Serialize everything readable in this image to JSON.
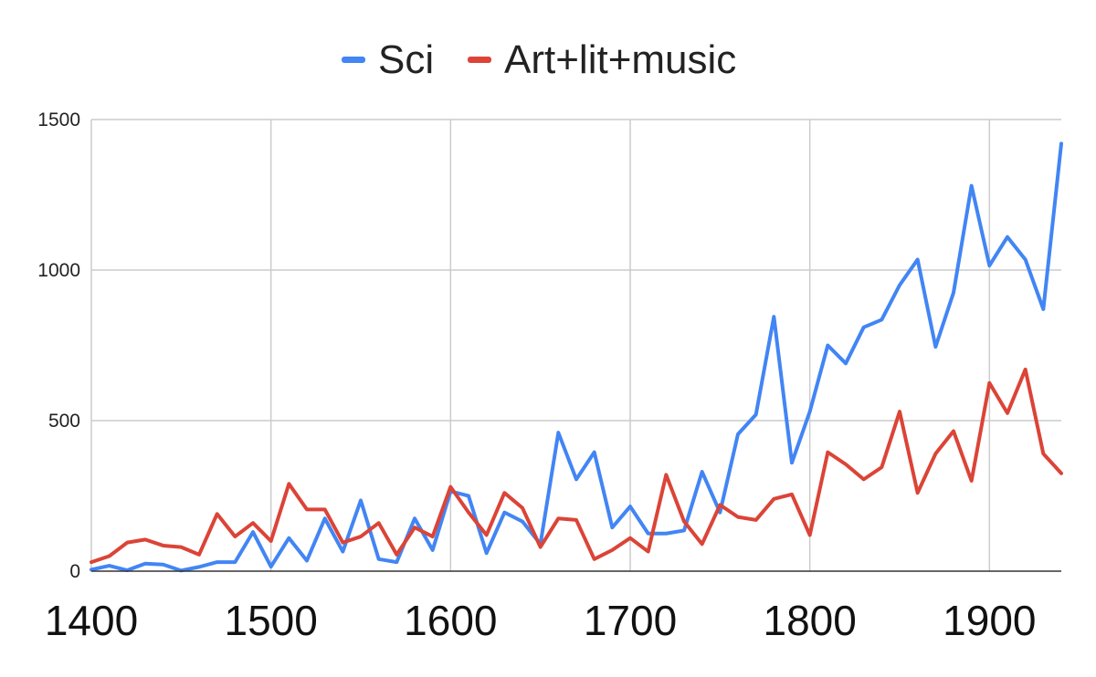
{
  "chart_data": {
    "type": "line",
    "title": "",
    "xlabel": "",
    "ylabel": "",
    "xlim": [
      1400,
      1940
    ],
    "ylim": [
      0,
      1500
    ],
    "x_ticks": [
      1400,
      1500,
      1600,
      1700,
      1800,
      1900
    ],
    "y_ticks": [
      0,
      500,
      1000,
      1500
    ],
    "grid": true,
    "legend_position": "top",
    "x": [
      1400,
      1410,
      1420,
      1430,
      1440,
      1450,
      1460,
      1470,
      1480,
      1490,
      1500,
      1510,
      1520,
      1530,
      1540,
      1550,
      1560,
      1570,
      1580,
      1590,
      1600,
      1610,
      1620,
      1630,
      1640,
      1650,
      1660,
      1670,
      1680,
      1690,
      1700,
      1710,
      1720,
      1730,
      1740,
      1750,
      1760,
      1770,
      1780,
      1790,
      1800,
      1810,
      1820,
      1830,
      1840,
      1850,
      1860,
      1870,
      1880,
      1890,
      1900,
      1910,
      1920,
      1930,
      1940
    ],
    "series": [
      {
        "name": "Sci",
        "color": "#4285f4",
        "values": [
          5,
          18,
          3,
          25,
          22,
          2,
          14,
          30,
          30,
          130,
          15,
          110,
          35,
          175,
          65,
          235,
          40,
          30,
          175,
          70,
          265,
          250,
          60,
          195,
          165,
          90,
          460,
          305,
          395,
          145,
          215,
          125,
          125,
          135,
          330,
          195,
          455,
          520,
          845,
          360,
          530,
          750,
          690,
          810,
          835,
          950,
          1035,
          745,
          925,
          1280,
          1015,
          1110,
          1035,
          870,
          1420
        ]
      },
      {
        "name": "Art+lit+music",
        "color": "#db4437",
        "values": [
          30,
          50,
          95,
          105,
          85,
          80,
          55,
          190,
          115,
          160,
          100,
          290,
          205,
          205,
          95,
          115,
          160,
          55,
          145,
          115,
          280,
          195,
          120,
          260,
          210,
          80,
          175,
          170,
          40,
          70,
          110,
          65,
          320,
          165,
          90,
          220,
          180,
          170,
          240,
          255,
          120,
          395,
          355,
          305,
          345,
          530,
          260,
          390,
          465,
          300,
          625,
          525,
          670,
          390,
          325
        ]
      }
    ]
  }
}
